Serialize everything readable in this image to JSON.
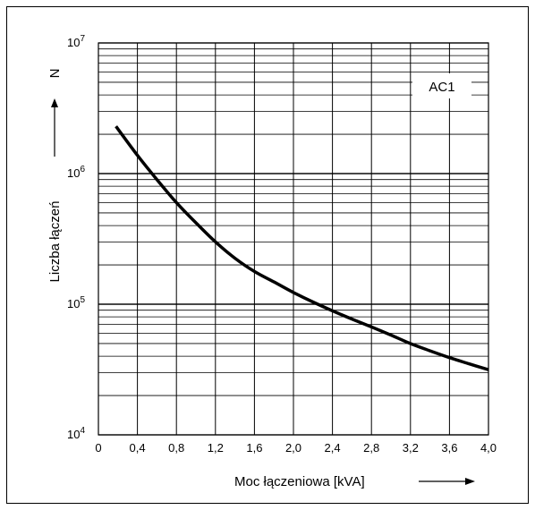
{
  "chart_data": {
    "type": "line",
    "title": "",
    "xlabel": "Moc łączeniowa [kVA]",
    "ylabel": "Liczba łączeń",
    "y_symbol": "N",
    "legend_label": "AC1",
    "legend_position": "top-right",
    "grid": true,
    "xscale": "linear",
    "yscale": "log",
    "xlim": [
      0,
      4.0
    ],
    "ylim": [
      10000,
      10000000
    ],
    "x_ticks": [
      "0",
      "0,4",
      "0,8",
      "1,2",
      "1,6",
      "2,0",
      "2,4",
      "2,8",
      "3,2",
      "3,6",
      "4,0"
    ],
    "y_ticks": [
      {
        "base": "10",
        "exp": "4",
        "value": 10000
      },
      {
        "base": "10",
        "exp": "5",
        "value": 100000
      },
      {
        "base": "10",
        "exp": "6",
        "value": 1000000
      },
      {
        "base": "10",
        "exp": "7",
        "value": 10000000
      }
    ],
    "series": [
      {
        "name": "AC1",
        "x": [
          0.18,
          0.4,
          0.6,
          0.8,
          1.0,
          1.2,
          1.4,
          1.6,
          1.8,
          2.0,
          2.2,
          2.4,
          2.6,
          2.8,
          3.0,
          3.2,
          3.4,
          3.6,
          3.8,
          4.0
        ],
        "y": [
          2300000,
          1380000,
          900000,
          600000,
          420000,
          300000,
          225000,
          178000,
          148000,
          123000,
          104000,
          89000,
          77000,
          67000,
          58000,
          50000,
          44000,
          39000,
          35000,
          31500
        ]
      }
    ]
  }
}
